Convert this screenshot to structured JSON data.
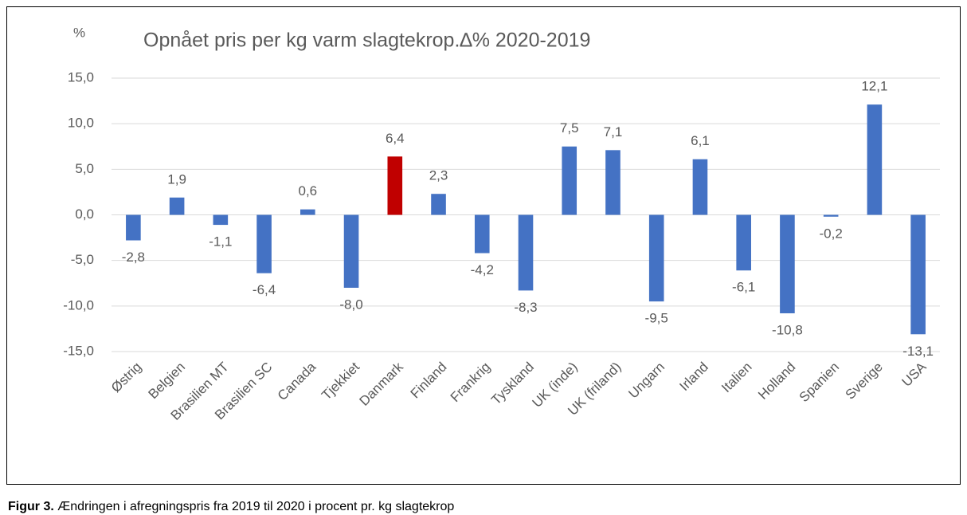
{
  "chart_data": {
    "type": "bar",
    "title": "Opnået pris per kg varm slagtekrop.∆% 2020-2019",
    "y_label": "%",
    "caption_label": "Figur 3.",
    "caption": " Ændringen i afregningspris fra 2019 til 2020 i procent pr. kg slagtekrop",
    "categories": [
      "Østrig",
      "Belgien",
      "Brasilien MT",
      "Brasilien SC",
      "Canada",
      "Tjekkiet",
      "Danmark",
      "Finland",
      "Frankrig",
      "Tyskland",
      "UK (inde)",
      "UK (friland)",
      "Ungarn",
      "Irland",
      "Italien",
      "Holland",
      "Spanien",
      "Sverige",
      "USA"
    ],
    "values": [
      -2.8,
      1.9,
      -1.1,
      -6.4,
      0.6,
      -8.0,
      6.4,
      2.3,
      -4.2,
      -8.3,
      7.5,
      7.1,
      -9.5,
      6.1,
      -6.1,
      -10.8,
      -0.2,
      12.1,
      -13.1
    ],
    "value_labels": [
      "-2,8",
      "1,9",
      "-1,1",
      "-6,4",
      "0,6",
      "-8,0",
      "6,4",
      "2,3",
      "-4,2",
      "-8,3",
      "7,5",
      "7,1",
      "-9,5",
      "6,1",
      "-6,1",
      "-10,8",
      "-0,2",
      "12,1",
      "-13,1"
    ],
    "colors": [
      "#4472c4",
      "#4472c4",
      "#4472c4",
      "#4472c4",
      "#4472c4",
      "#4472c4",
      "#c00000",
      "#4472c4",
      "#4472c4",
      "#4472c4",
      "#4472c4",
      "#4472c4",
      "#4472c4",
      "#4472c4",
      "#4472c4",
      "#4472c4",
      "#4472c4",
      "#4472c4",
      "#4472c4"
    ],
    "ylim": [
      -15,
      15
    ],
    "yticks": [
      {
        "value": -15,
        "label": "-15,0"
      },
      {
        "value": -10,
        "label": "-10,0"
      },
      {
        "value": -5,
        "label": "-5,0"
      },
      {
        "value": 0,
        "label": "0,0"
      },
      {
        "value": 5,
        "label": "5,0"
      },
      {
        "value": 10,
        "label": "10,0"
      },
      {
        "value": 15,
        "label": "15,0"
      }
    ],
    "grid": true
  }
}
